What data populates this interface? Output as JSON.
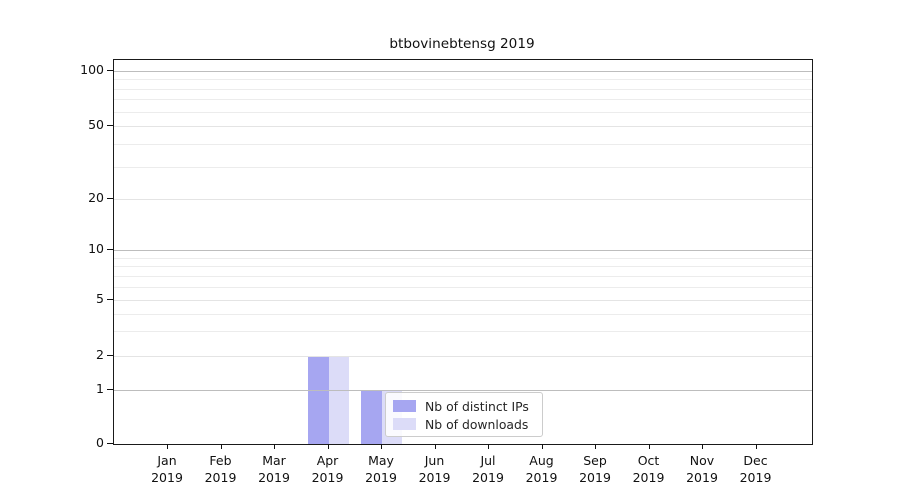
{
  "chart_data": {
    "type": "bar",
    "title": "btbovinebtensg 2019",
    "months": [
      "Jan",
      "Feb",
      "Mar",
      "Apr",
      "May",
      "Jun",
      "Jul",
      "Aug",
      "Sep",
      "Oct",
      "Nov",
      "Dec"
    ],
    "year": "2019",
    "series": [
      {
        "name": "Nb of distinct IPs",
        "color": "#a6a6f1",
        "values": [
          0,
          0,
          0,
          2,
          1,
          0,
          0,
          0,
          0,
          0,
          0,
          0
        ]
      },
      {
        "name": "Nb of downloads",
        "color": "#dcdcf8",
        "values": [
          0,
          0,
          0,
          2,
          1,
          0,
          0,
          0,
          0,
          0,
          0,
          0
        ]
      }
    ],
    "yticks": [
      0,
      1,
      2,
      5,
      10,
      20,
      50,
      100
    ],
    "minor_gridlines": [
      3,
      4,
      6,
      7,
      8,
      9,
      30,
      40,
      60,
      70,
      80,
      90
    ],
    "yscale": "symlog",
    "ylim": [
      0,
      110
    ],
    "grid": "horizontal",
    "legend_position": "inside, lower area over May",
    "colors": {
      "decade_gridline": "#bdbdbd",
      "minor_gridline": "#ececec",
      "axis": "#1a1a1a"
    }
  }
}
